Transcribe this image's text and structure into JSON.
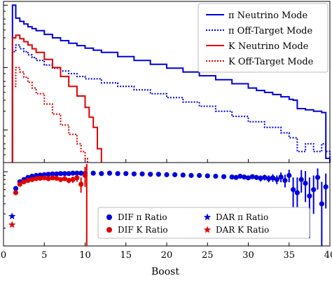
{
  "chart_data": [
    {
      "type": "line",
      "panel": "top",
      "description_note": "",
      "x_range": [
        0,
        40
      ],
      "y_scale": "log",
      "series": [
        {
          "name": "π Neutrino Mode",
          "color": "#0000dd",
          "style": "solid-step",
          "x": [
            1.1,
            1.5,
            2,
            2.5,
            3,
            3.5,
            4,
            5,
            6,
            7,
            8,
            9,
            10,
            11,
            12,
            14,
            16,
            18,
            20,
            22,
            24,
            26,
            28,
            30,
            31,
            32,
            33,
            34,
            35,
            35.5,
            36,
            37,
            38,
            39,
            39.5,
            40
          ],
          "y": [
            1.0,
            0.62,
            0.55,
            0.5,
            0.45,
            0.42,
            0.39,
            0.34,
            0.3,
            0.27,
            0.245,
            0.225,
            0.205,
            0.19,
            0.175,
            0.15,
            0.13,
            0.113,
            0.098,
            0.085,
            0.074,
            0.064,
            0.055,
            0.047,
            0.043,
            0.04,
            0.037,
            0.034,
            0.031,
            0.03,
            0.022,
            0.021,
            0.02,
            0.019,
            0.0035,
            0.003
          ]
        },
        {
          "name": "π Off-Target Mode",
          "color": "#0000dd",
          "style": "dotted-step",
          "x": [
            1.1,
            1.5,
            2,
            2.5,
            3,
            3.5,
            4,
            5,
            6,
            7,
            8,
            9,
            10,
            12,
            14,
            16,
            18,
            20,
            22,
            24,
            26,
            28,
            30,
            32,
            34,
            35,
            36,
            37,
            38,
            39,
            39.5,
            40
          ],
          "y": [
            0.18,
            0.23,
            0.2,
            0.18,
            0.16,
            0.145,
            0.13,
            0.11,
            0.098,
            0.088,
            0.08,
            0.072,
            0.066,
            0.057,
            0.05,
            0.044,
            0.038,
            0.033,
            0.028,
            0.024,
            0.02,
            0.0165,
            0.0135,
            0.011,
            0.009,
            0.0075,
            0.0045,
            0.006,
            0.0045,
            0.006,
            0.0045,
            0.004
          ]
        },
        {
          "name": "K Neutrino Mode",
          "color": "#e00000",
          "style": "solid-step",
          "x": [
            1.1,
            1.5,
            2,
            2.5,
            3,
            3.5,
            4,
            5,
            6,
            7,
            8,
            9,
            10,
            10.5,
            11,
            11.5,
            12
          ],
          "y": [
            0.3,
            0.33,
            0.29,
            0.26,
            0.23,
            0.2,
            0.175,
            0.135,
            0.1,
            0.072,
            0.05,
            0.035,
            0.023,
            0.016,
            0.011,
            0.005,
            0.003
          ]
        },
        {
          "name": "K Off-Target Mode",
          "color": "#e00000",
          "style": "dotted-step",
          "x": [
            1.1,
            1.5,
            2,
            2.5,
            3,
            3.5,
            4,
            5,
            6,
            7,
            8,
            9,
            9.5,
            10,
            10.3
          ],
          "y": [
            0.05,
            0.1,
            0.085,
            0.07,
            0.058,
            0.047,
            0.038,
            0.026,
            0.018,
            0.012,
            0.0085,
            0.006,
            0.0045,
            0.0035,
            0.003
          ]
        }
      ]
    },
    {
      "type": "scatter",
      "panel": "bottom",
      "x_range": [
        0,
        40
      ],
      "xlabel": "Boost",
      "xticks": [
        "0",
        "5",
        "10",
        "15",
        "20",
        "25",
        "30",
        "35",
        "40"
      ],
      "series": [
        {
          "name": "DIF π Ratio",
          "color": "#0000dd",
          "marker": "circle",
          "x": [
            1.5,
            2,
            2.5,
            3,
            3.5,
            4,
            4.5,
            5,
            5.5,
            6,
            6.5,
            7,
            7.5,
            8,
            8.5,
            9,
            9.5,
            10,
            11,
            12,
            13,
            14,
            15,
            16,
            17,
            18,
            19,
            20,
            21,
            22,
            23,
            24,
            25,
            26,
            27,
            28,
            28.5,
            29,
            29.5,
            30,
            30.5,
            31,
            31.5,
            32,
            32.5,
            33,
            33.5,
            34,
            34.5,
            35,
            35.5,
            36,
            36.5,
            37,
            37.5,
            38,
            38.5,
            39,
            39.5
          ],
          "y": [
            0.62,
            0.75,
            0.8,
            0.85,
            0.88,
            0.9,
            0.91,
            0.92,
            0.93,
            0.94,
            0.94,
            0.95,
            0.95,
            0.95,
            0.96,
            0.96,
            0.96,
            0.95,
            0.96,
            0.95,
            0.96,
            0.95,
            0.95,
            0.94,
            0.94,
            0.93,
            0.93,
            0.92,
            0.92,
            0.91,
            0.9,
            0.9,
            0.89,
            0.88,
            0.87,
            0.86,
            0.85,
            0.88,
            0.86,
            0.84,
            0.87,
            0.85,
            0.83,
            0.85,
            0.82,
            0.84,
            0.8,
            0.86,
            0.78,
            0.9,
            0.6,
            0.55,
            0.8,
            0.72,
            0.5,
            0.6,
            0.85,
            0.4,
            0.65
          ],
          "yerr": [
            0.02,
            0.02,
            0.02,
            0.02,
            0.02,
            0.02,
            0.02,
            0.02,
            0.02,
            0.02,
            0.02,
            0.02,
            0.02,
            0.02,
            0.02,
            0.02,
            0.02,
            0.02,
            0.02,
            0.02,
            0.02,
            0.02,
            0.02,
            0.02,
            0.02,
            0.02,
            0.02,
            0.02,
            0.02,
            0.02,
            0.03,
            0.03,
            0.03,
            0.03,
            0.03,
            0.04,
            0.04,
            0.05,
            0.05,
            0.05,
            0.06,
            0.06,
            0.07,
            0.07,
            0.08,
            0.09,
            0.1,
            0.12,
            0.14,
            0.16,
            0.25,
            0.3,
            0.25,
            0.3,
            0.35,
            0.3,
            0.25,
            0.35,
            0.3
          ]
        },
        {
          "name": "DIF K Ratio",
          "color": "#e00000",
          "marker": "circle",
          "x": [
            1.5,
            2,
            2.5,
            3,
            3.5,
            4,
            4.5,
            5,
            5.5,
            6,
            6.5,
            7,
            7.5,
            8,
            8.5,
            9,
            9.5,
            10
          ],
          "y": [
            0.55,
            0.7,
            0.75,
            0.78,
            0.8,
            0.82,
            0.83,
            0.84,
            0.82,
            0.84,
            0.83,
            0.8,
            0.82,
            0.78,
            0.8,
            0.84,
            0.7,
            0.9
          ],
          "yerr": [
            0.03,
            0.03,
            0.03,
            0.03,
            0.03,
            0.03,
            0.03,
            0.03,
            0.04,
            0.04,
            0.04,
            0.05,
            0.05,
            0.06,
            0.07,
            0.09,
            0.15,
            0.25
          ]
        },
        {
          "name": "DAR π Ratio",
          "color": "#0000dd",
          "marker": "star",
          "x": [
            1.05
          ],
          "y": [
            0.28
          ]
        },
        {
          "name": "DAR K Ratio",
          "color": "#e00000",
          "marker": "star",
          "x": [
            1.05
          ],
          "y": [
            0.22
          ]
        }
      ]
    }
  ],
  "legend_top": [
    {
      "name": "π Neutrino Mode",
      "color": "#0000dd",
      "style": "solid"
    },
    {
      "name": "π Off-Target Mode",
      "color": "#0000dd",
      "style": "dotted"
    },
    {
      "name": "K Neutrino Mode",
      "color": "#e00000",
      "style": "solid"
    },
    {
      "name": "K Off-Target Mode",
      "color": "#e00000",
      "style": "dotted"
    }
  ],
  "legend_bottom": [
    {
      "name": "DIF π Ratio",
      "color": "#0000dd",
      "marker": "circle"
    },
    {
      "name": "DAR π Ratio",
      "color": "#0000dd",
      "marker": "star"
    },
    {
      "name": "DIF K Ratio",
      "color": "#e00000",
      "marker": "circle"
    },
    {
      "name": "DAR K Ratio",
      "color": "#e00000",
      "marker": "star"
    }
  ]
}
